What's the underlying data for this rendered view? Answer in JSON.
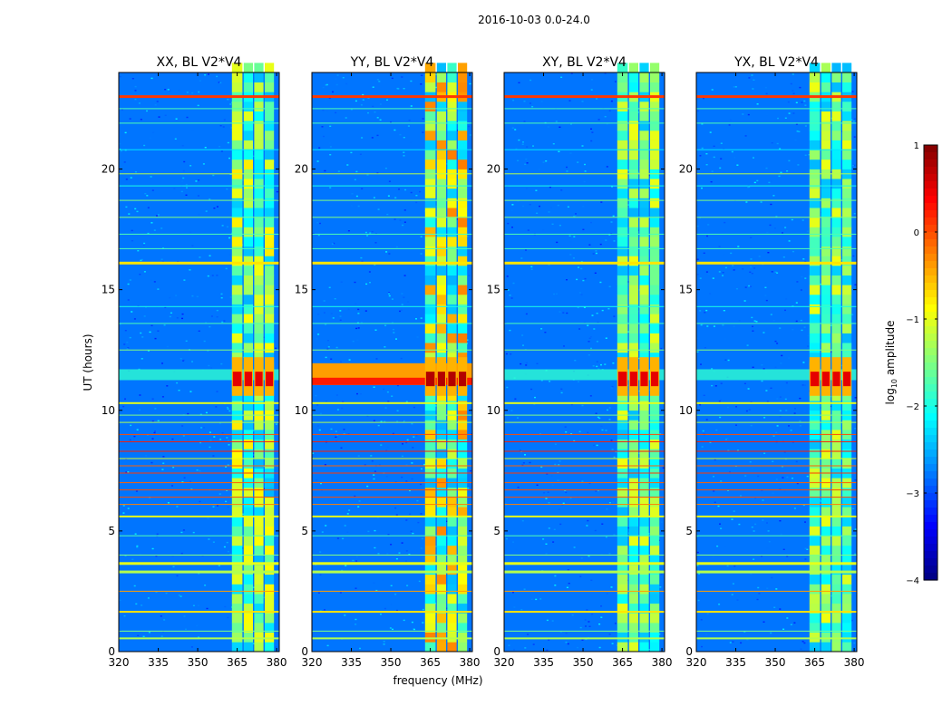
{
  "chart_data": {
    "type": "heatmap",
    "suptitle": "2016-10-03 0.0-24.0",
    "xlabel": "frequency (MHz)",
    "ylabel": "UT (hours)",
    "xlim": [
      320,
      381
    ],
    "ylim": [
      0,
      24
    ],
    "xticks": [
      "320",
      "335",
      "350",
      "365",
      "380"
    ],
    "yticks": [
      "0",
      "5",
      "10",
      "15",
      "20"
    ],
    "panels": [
      {
        "title": "XX, BL V2*V4",
        "rfi_level": 0.65,
        "show_yaxis": true
      },
      {
        "title": "YY, BL V2*V4",
        "rfi_level": 0.95,
        "show_yaxis": true
      },
      {
        "title": "XY, BL V2*V4",
        "rfi_level": 0.55,
        "show_yaxis": true
      },
      {
        "title": "YX, BL V2*V4",
        "rfi_level": 0.55,
        "show_yaxis": true
      }
    ],
    "bright_band_hours": [
      11.0,
      12.0
    ],
    "rfi_blocks_mhz": [
      [
        363,
        367
      ],
      [
        367.5,
        371
      ],
      [
        371.5,
        375
      ],
      [
        375.5,
        379
      ]
    ],
    "colorbar": {
      "label": "log10 amplitude",
      "label_main": "log",
      "label_sub": "10",
      "label_rest": " amplitude",
      "min": -4,
      "max": 1,
      "ticks": [
        "−4",
        "−3",
        "−2",
        "−1",
        "0",
        "1"
      ],
      "colormap": "jet"
    }
  }
}
